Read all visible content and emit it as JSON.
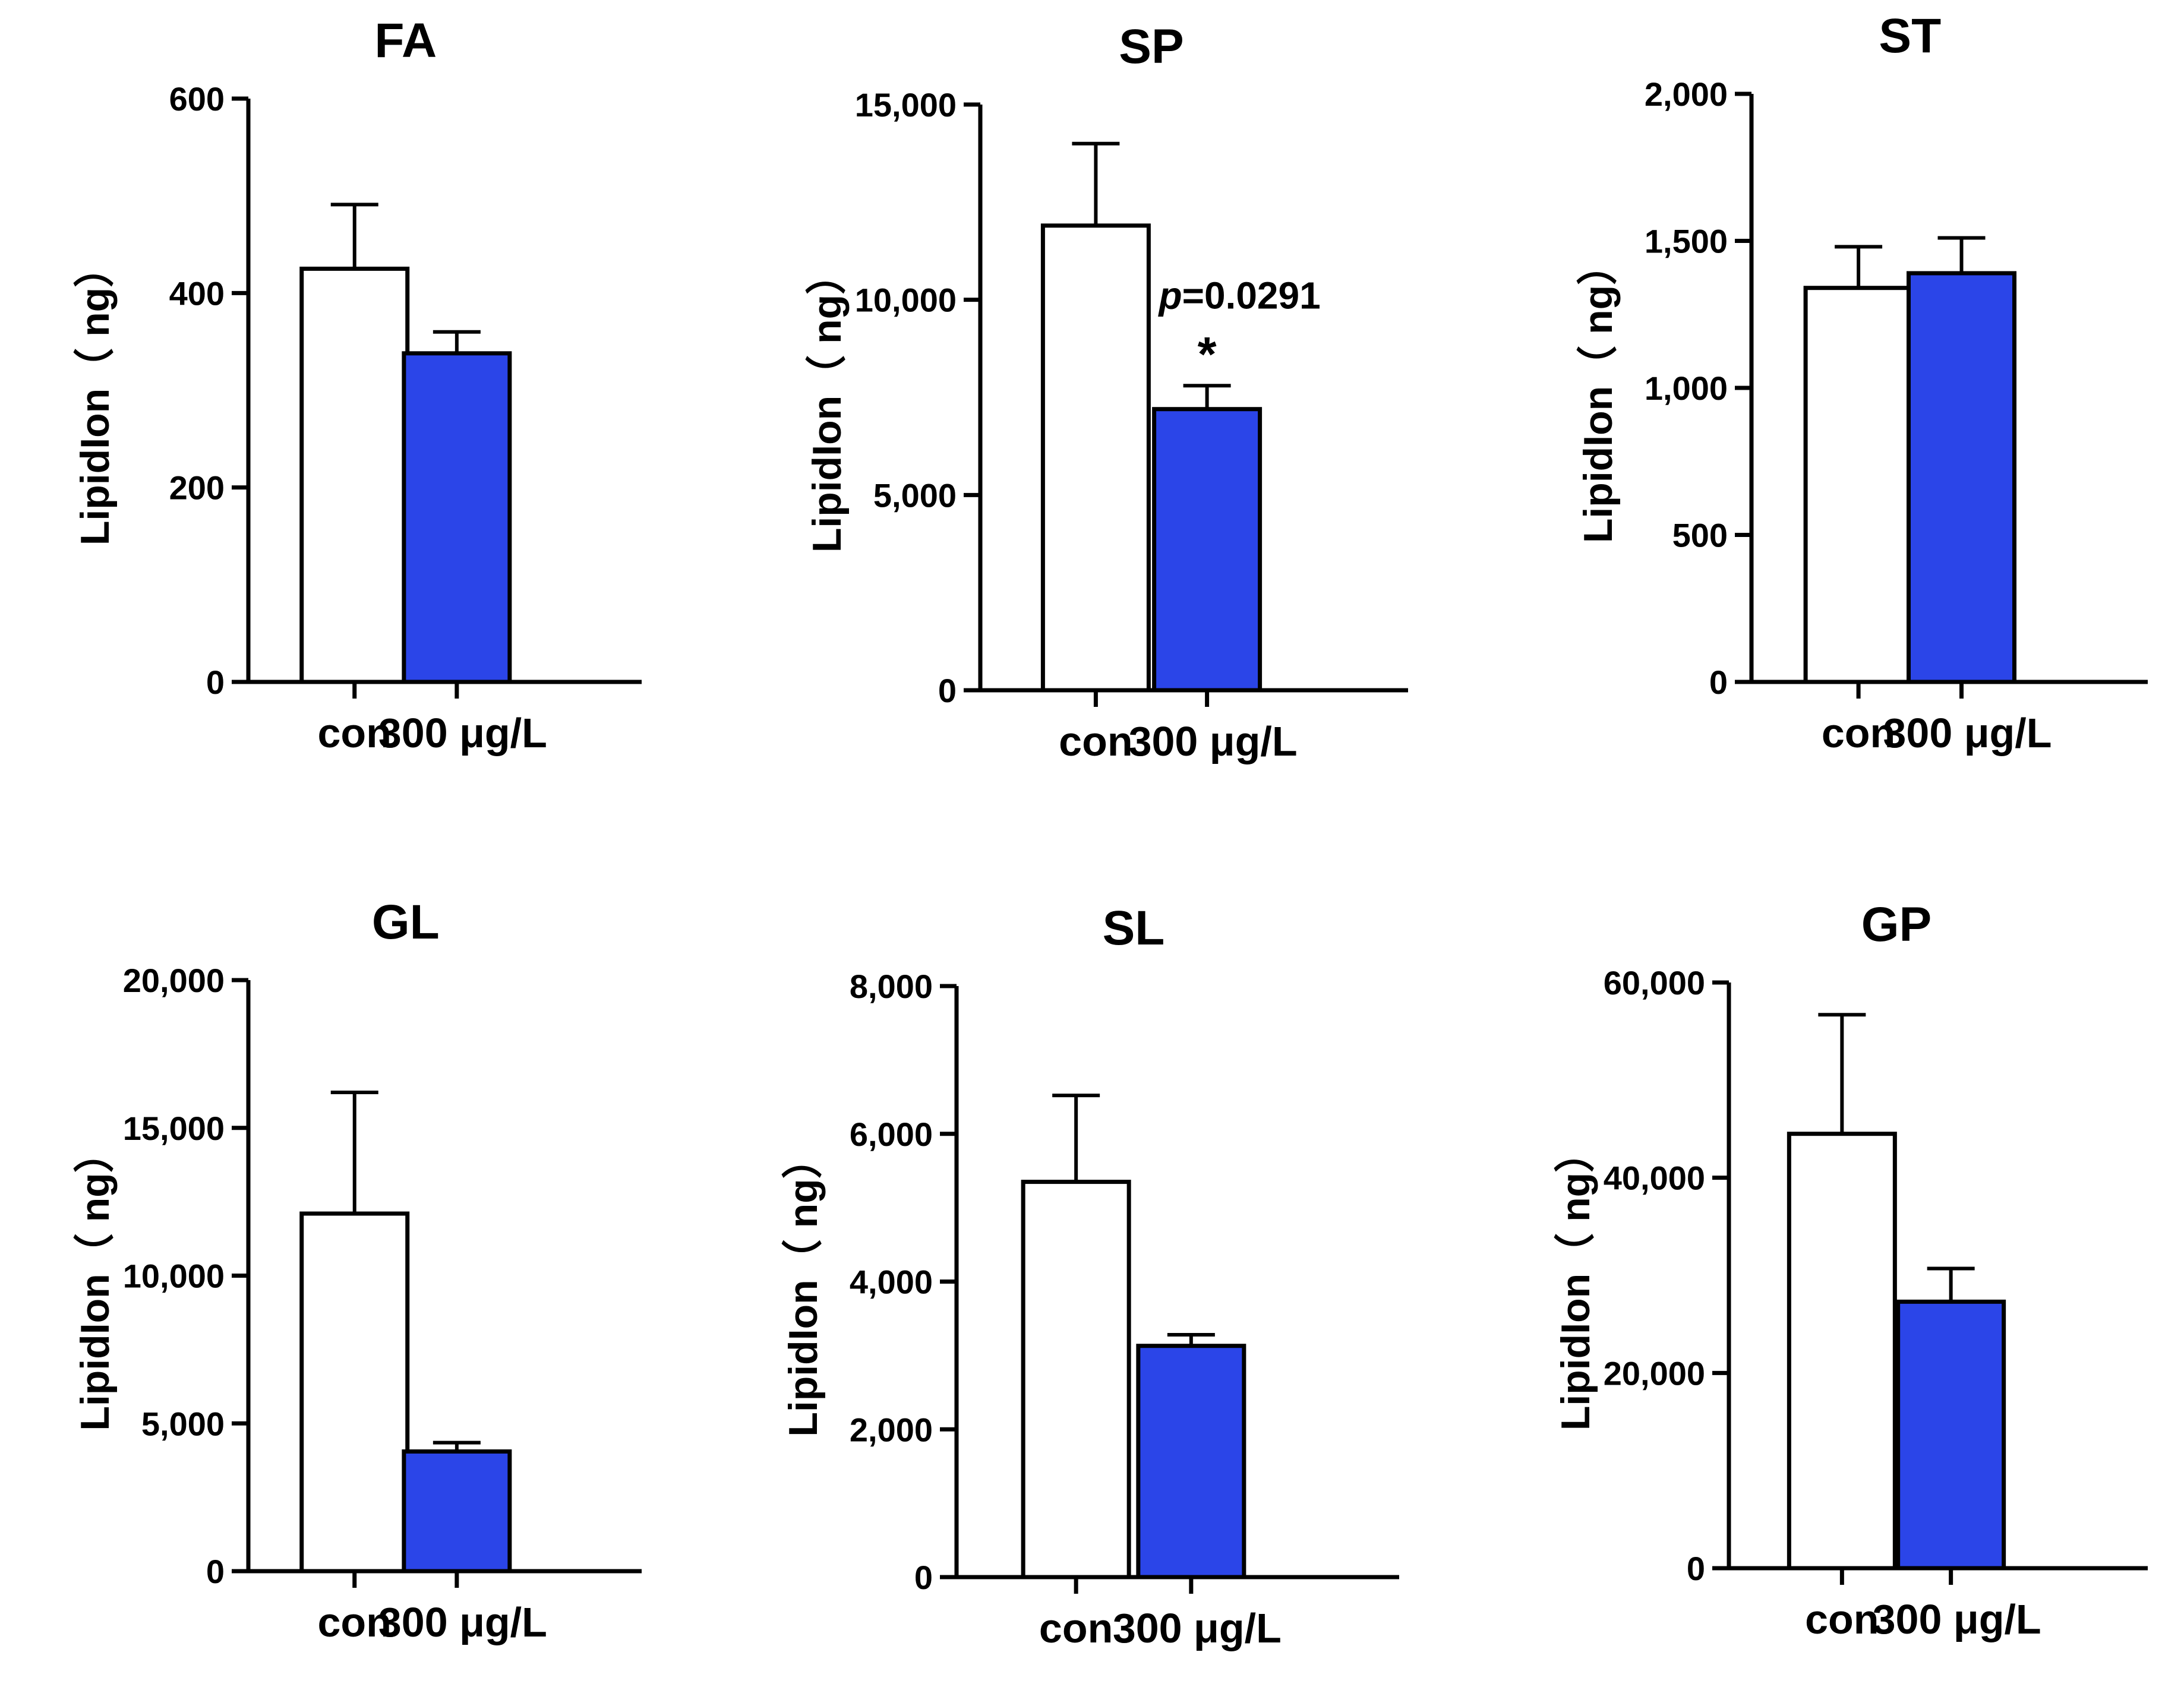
{
  "chart_data": [
    {
      "type": "bar",
      "title": "FA",
      "categories": [
        "con",
        "300 μg/L"
      ],
      "values": [
        425,
        338
      ],
      "errors": [
        66,
        22
      ],
      "ylabel": "LipidIon（ ng）",
      "ylim": [
        0,
        600
      ],
      "yticks": [
        0,
        200,
        400,
        600
      ],
      "ytick_labels": [
        "0",
        "200",
        "400",
        "600"
      ],
      "colors": [
        "#ffffff",
        "#2b45e8"
      ],
      "annotation": null
    },
    {
      "type": "bar",
      "title": "SP",
      "categories": [
        "con",
        "300 μg/L"
      ],
      "values": [
        11900,
        7200
      ],
      "errors": [
        2100,
        600
      ],
      "ylabel": "LipidIon（ ng）",
      "ylim": [
        0,
        15000
      ],
      "yticks": [
        0,
        5000,
        10000,
        15000
      ],
      "ytick_labels": [
        "0",
        "5,000",
        "10,000",
        "15,000"
      ],
      "colors": [
        "#ffffff",
        "#2b45e8"
      ],
      "annotation": {
        "p_letter": "p",
        "p_value": "=0.0291",
        "star": "*"
      }
    },
    {
      "type": "bar",
      "title": "ST",
      "categories": [
        "con",
        "300 μg/L"
      ],
      "values": [
        1340,
        1390
      ],
      "errors": [
        140,
        120
      ],
      "ylabel": "LipidIon（ ng）",
      "ylim": [
        0,
        2000
      ],
      "yticks": [
        0,
        500,
        1000,
        1500,
        2000
      ],
      "ytick_labels": [
        "0",
        "500",
        "1,000",
        "1,500",
        "2,000"
      ],
      "colors": [
        "#ffffff",
        "#2b45e8"
      ],
      "annotation": null
    },
    {
      "type": "bar",
      "title": "GL",
      "categories": [
        "con",
        "300 μg/L"
      ],
      "values": [
        12100,
        4050
      ],
      "errors": [
        4100,
        300
      ],
      "ylabel": "LipidIon（ ng）",
      "ylim": [
        0,
        20000
      ],
      "yticks": [
        0,
        5000,
        10000,
        15000,
        20000
      ],
      "ytick_labels": [
        "0",
        "5,000",
        "10,000",
        "15,000",
        "20,000"
      ],
      "colors": [
        "#ffffff",
        "#2b45e8"
      ],
      "annotation": null
    },
    {
      "type": "bar",
      "title": "SL",
      "categories": [
        "con",
        "300 μg/L"
      ],
      "values": [
        5350,
        3130
      ],
      "errors": [
        1170,
        150
      ],
      "ylabel": "LipidIon（ ng）",
      "ylim": [
        0,
        8000
      ],
      "yticks": [
        0,
        2000,
        4000,
        6000,
        8000
      ],
      "ytick_labels": [
        "0",
        "2,000",
        "4,000",
        "6,000",
        "8,000"
      ],
      "colors": [
        "#ffffff",
        "#2b45e8"
      ],
      "annotation": null
    },
    {
      "type": "bar",
      "title": "GP",
      "categories": [
        "con",
        "300 μg/L"
      ],
      "values": [
        44500,
        27300
      ],
      "errors": [
        12200,
        3400
      ],
      "ylabel": "LipidIon（ ng）",
      "ylim": [
        0,
        60000
      ],
      "yticks": [
        0,
        20000,
        40000,
        60000
      ],
      "ytick_labels": [
        "0",
        "20,000",
        "40,000",
        "60,000"
      ],
      "colors": [
        "#ffffff",
        "#2b45e8"
      ],
      "annotation": null
    }
  ]
}
